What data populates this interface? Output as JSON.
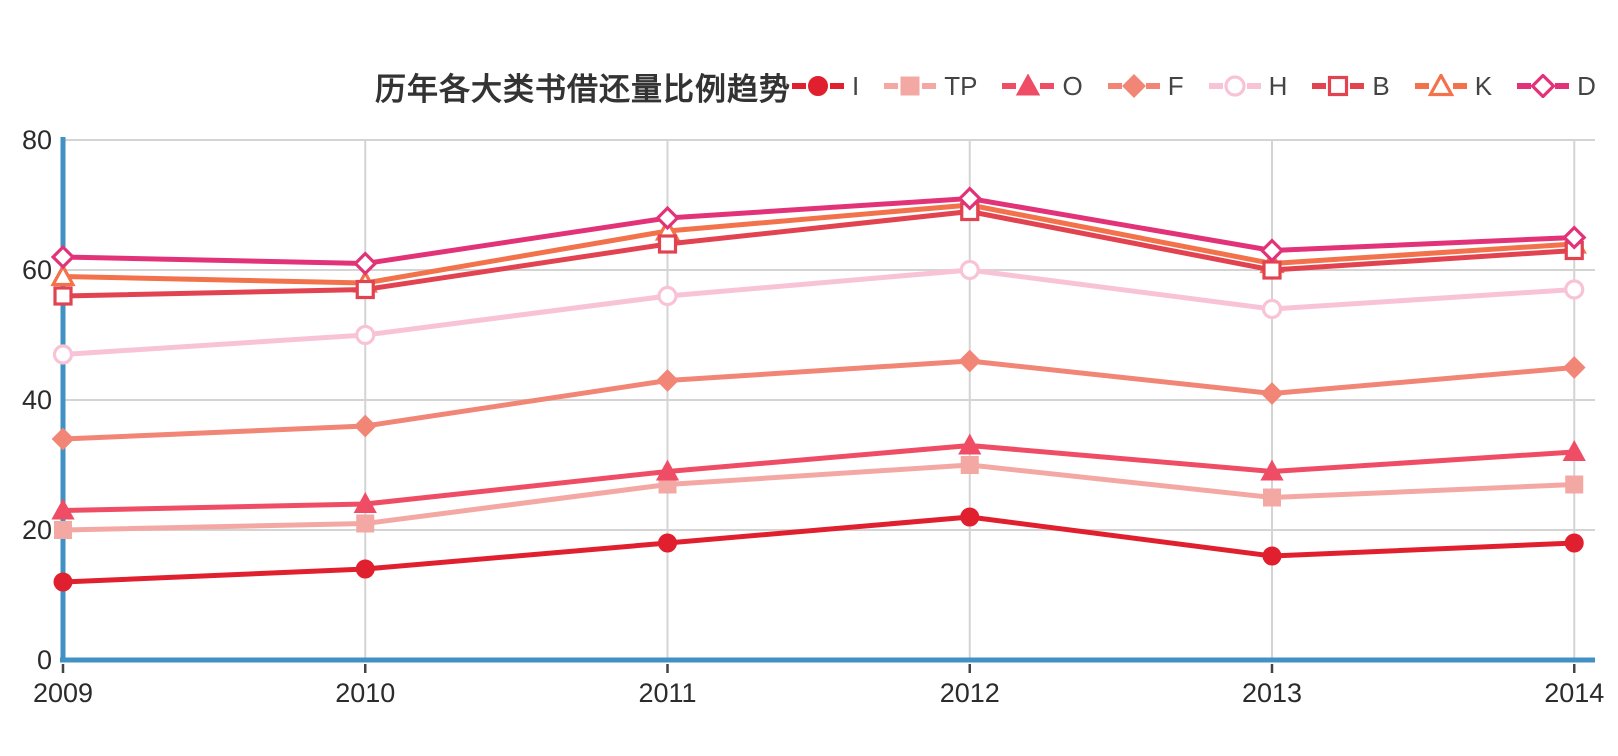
{
  "colors": {
    "axis": "#4191c5",
    "grid": "#d4d4d4",
    "tick": "#444444",
    "label": "#2b2b2b",
    "title": "#333333"
  },
  "chart_data": {
    "type": "line",
    "title": "历年各大类书借还量比例趋势",
    "categories": [
      "2009",
      "2010",
      "2011",
      "2012",
      "2013",
      "2014"
    ],
    "series": [
      {
        "name": "I",
        "color": "#e0202e",
        "marker": "circle",
        "filled": true,
        "values": [
          12,
          14,
          18,
          22,
          16,
          18
        ]
      },
      {
        "name": "TP",
        "color": "#f4a8a4",
        "marker": "square",
        "filled": true,
        "values": [
          20,
          21,
          27,
          30,
          25,
          27
        ]
      },
      {
        "name": "O",
        "color": "#ef4d66",
        "marker": "triangle",
        "filled": true,
        "values": [
          23,
          24,
          29,
          33,
          29,
          32
        ]
      },
      {
        "name": "F",
        "color": "#f18576",
        "marker": "diamond",
        "filled": true,
        "values": [
          34,
          36,
          43,
          46,
          41,
          45
        ]
      },
      {
        "name": "H",
        "color": "#f8c3d6",
        "marker": "circle",
        "filled": false,
        "values": [
          47,
          50,
          56,
          60,
          54,
          57
        ]
      },
      {
        "name": "B",
        "color": "#e24350",
        "marker": "square",
        "filled": false,
        "values": [
          56,
          57,
          64,
          69,
          60,
          63
        ]
      },
      {
        "name": "K",
        "color": "#f2724b",
        "marker": "triangle",
        "filled": false,
        "values": [
          59,
          58,
          66,
          70,
          61,
          64
        ]
      },
      {
        "name": "D",
        "color": "#e23379",
        "marker": "diamond",
        "filled": false,
        "values": [
          62,
          61,
          68,
          71,
          63,
          65
        ]
      }
    ],
    "ylim": [
      0,
      80
    ],
    "yticks": [
      0,
      20,
      40,
      60,
      80
    ],
    "grid": true,
    "legend_position": "top-right"
  }
}
